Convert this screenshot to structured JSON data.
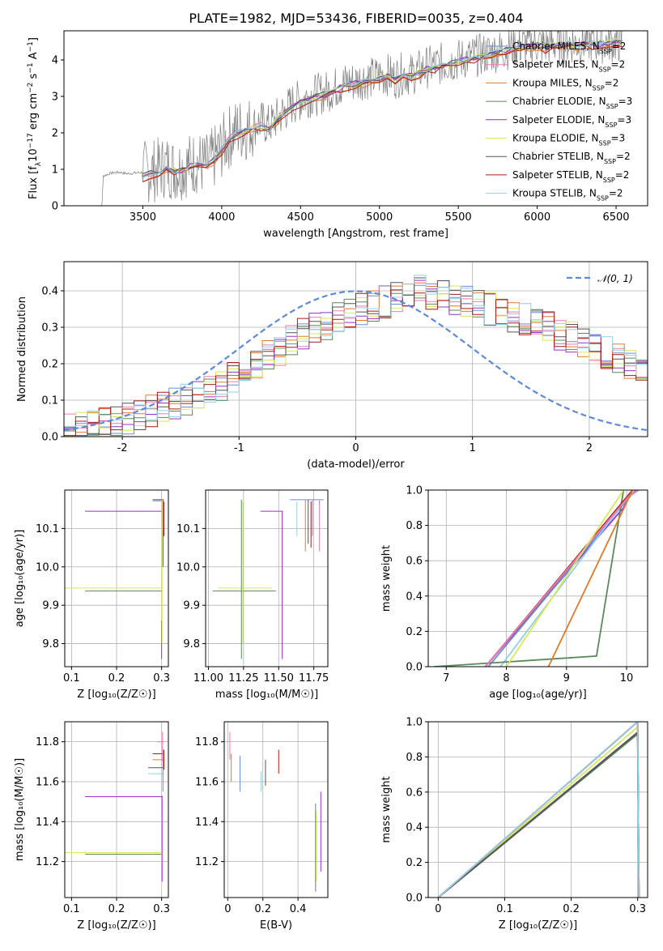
{
  "chart_data": [
    {
      "id": "spectrum",
      "type": "line",
      "title": "PLATE=1982, MJD=53436, FIBERID=0035, z=0.404",
      "xlabel": "wavelength [Angstrom, rest frame]",
      "ylabel_parts": [
        "Flux [f",
        "λ",
        "10",
        "−17",
        " erg cm",
        "−2",
        " s",
        "−1",
        " A",
        "−1",
        "]"
      ],
      "xlim": [
        3000,
        6700
      ],
      "ylim": [
        0,
        4.8
      ],
      "xticks": [
        3500,
        4000,
        4500,
        5000,
        5500,
        6000,
        6500
      ],
      "yticks": [
        0,
        1,
        2,
        3,
        4
      ],
      "data_color": "#808080",
      "data_points": [
        [
          3240,
          0.0
        ],
        [
          3250,
          0.82
        ],
        [
          3300,
          0.9
        ],
        [
          3350,
          0.92
        ],
        [
          3400,
          0.88
        ],
        [
          3450,
          0.9
        ],
        [
          3500,
          0.92
        ],
        [
          3550,
          0.95
        ],
        [
          3600,
          1.0
        ],
        [
          3650,
          1.1
        ],
        [
          3700,
          1.0
        ],
        [
          3750,
          1.05
        ],
        [
          3800,
          1.15
        ],
        [
          3850,
          1.2
        ],
        [
          3900,
          1.1
        ],
        [
          3950,
          1.3
        ],
        [
          4000,
          1.6
        ],
        [
          4050,
          1.9
        ],
        [
          4100,
          2.1
        ],
        [
          4150,
          2.1
        ],
        [
          4200,
          2.2
        ],
        [
          4250,
          2.3
        ],
        [
          4300,
          2.2
        ],
        [
          4350,
          2.4
        ],
        [
          4400,
          2.6
        ],
        [
          4450,
          2.8
        ],
        [
          4500,
          2.9
        ],
        [
          4550,
          3.0
        ],
        [
          4600,
          3.05
        ],
        [
          4650,
          3.1
        ],
        [
          4700,
          3.2
        ],
        [
          4750,
          3.3
        ],
        [
          4800,
          3.4
        ],
        [
          4850,
          3.4
        ],
        [
          4900,
          3.5
        ],
        [
          4950,
          3.5
        ],
        [
          5000,
          3.55
        ],
        [
          5050,
          3.6
        ],
        [
          5100,
          3.5
        ],
        [
          5150,
          3.65
        ],
        [
          5200,
          3.6
        ],
        [
          5250,
          3.7
        ],
        [
          5300,
          3.8
        ],
        [
          5350,
          3.85
        ],
        [
          5400,
          3.9
        ],
        [
          5450,
          3.95
        ],
        [
          5500,
          4.0
        ],
        [
          5550,
          4.05
        ],
        [
          5600,
          4.1
        ],
        [
          5650,
          4.15
        ],
        [
          5700,
          4.2
        ],
        [
          5750,
          4.25
        ],
        [
          5800,
          4.3
        ],
        [
          5850,
          4.35
        ],
        [
          5900,
          4.4
        ],
        [
          5950,
          4.42
        ],
        [
          6000,
          4.45
        ],
        [
          6050,
          4.4
        ],
        [
          6100,
          4.45
        ],
        [
          6150,
          4.45
        ],
        [
          6200,
          4.5
        ],
        [
          6250,
          4.45
        ],
        [
          6300,
          4.5
        ],
        [
          6350,
          4.5
        ],
        [
          6400,
          4.48
        ],
        [
          6450,
          4.5
        ],
        [
          6500,
          4.5
        ],
        [
          6540,
          4.5
        ]
      ],
      "model_points": [
        [
          3500,
          0.82
        ],
        [
          3550,
          0.88
        ],
        [
          3600,
          0.95
        ],
        [
          3650,
          1.05
        ],
        [
          3700,
          0.95
        ],
        [
          3750,
          1.0
        ],
        [
          3800,
          1.1
        ],
        [
          3850,
          1.15
        ],
        [
          3900,
          1.05
        ],
        [
          3950,
          1.25
        ],
        [
          4000,
          1.55
        ],
        [
          4050,
          1.85
        ],
        [
          4100,
          2.0
        ],
        [
          4150,
          2.05
        ],
        [
          4200,
          2.15
        ],
        [
          4250,
          2.2
        ],
        [
          4300,
          2.1
        ],
        [
          4350,
          2.35
        ],
        [
          4400,
          2.55
        ],
        [
          4450,
          2.75
        ],
        [
          4500,
          2.85
        ],
        [
          4550,
          2.95
        ],
        [
          4600,
          3.0
        ],
        [
          4650,
          3.05
        ],
        [
          4700,
          3.15
        ],
        [
          4750,
          3.25
        ],
        [
          4800,
          3.3
        ],
        [
          4850,
          3.35
        ],
        [
          4900,
          3.4
        ],
        [
          4950,
          3.45
        ],
        [
          5000,
          3.5
        ],
        [
          5050,
          3.55
        ],
        [
          5100,
          3.45
        ],
        [
          5150,
          3.6
        ],
        [
          5200,
          3.55
        ],
        [
          5250,
          3.65
        ],
        [
          5300,
          3.75
        ],
        [
          5350,
          3.8
        ],
        [
          5400,
          3.85
        ],
        [
          5450,
          3.9
        ],
        [
          5500,
          3.95
        ],
        [
          5550,
          4.0
        ],
        [
          5600,
          4.05
        ],
        [
          5650,
          4.1
        ],
        [
          5700,
          4.15
        ],
        [
          5750,
          4.2
        ],
        [
          5800,
          4.25
        ],
        [
          5850,
          4.3
        ],
        [
          5900,
          4.35
        ],
        [
          5950,
          4.38
        ],
        [
          6000,
          4.4
        ],
        [
          6050,
          4.35
        ],
        [
          6100,
          4.4
        ],
        [
          6150,
          4.42
        ],
        [
          6200,
          4.45
        ],
        [
          6250,
          4.4
        ],
        [
          6300,
          4.45
        ],
        [
          6350,
          4.45
        ],
        [
          6400,
          4.45
        ],
        [
          6450,
          4.45
        ],
        [
          6500,
          4.5
        ],
        [
          6540,
          4.5
        ]
      ],
      "legend_position": "upper-right",
      "series": [
        {
          "name": "Chabrier MILES",
          "nssp": "2",
          "color": "#6a8fd8"
        },
        {
          "name": "Salpeter MILES",
          "nssp": "2",
          "color": "#f07ab4"
        },
        {
          "name": "Kroupa MILES",
          "nssp": "2",
          "color": "#e07a2a"
        },
        {
          "name": "Chabrier ELODIE",
          "nssp": "3",
          "color": "#5a8a5a"
        },
        {
          "name": "Salpeter ELODIE",
          "nssp": "3",
          "color": "#9b30c8"
        },
        {
          "name": "Kroupa ELODIE",
          "nssp": "3",
          "color": "#d8e858"
        },
        {
          "name": "Chabrier STELIB",
          "nssp": "2",
          "color": "#555555"
        },
        {
          "name": "Salpeter STELIB",
          "nssp": "2",
          "color": "#b01818"
        },
        {
          "name": "Kroupa STELIB",
          "nssp": "2",
          "color": "#8fd0e8"
        }
      ]
    },
    {
      "id": "residuals",
      "type": "histogram",
      "xlabel": "(data-model)/error",
      "ylabel": "Normed distribution",
      "xlim": [
        -2.5,
        2.5
      ],
      "ylim": [
        0,
        0.48
      ],
      "xticks": [
        -2,
        -1,
        0,
        1,
        2
      ],
      "yticks": [
        0.0,
        0.1,
        0.2,
        0.3,
        0.4
      ],
      "legend_position": "upper-right",
      "normal_label": "𝒩(0, 1)",
      "normal_color": "#5b8bd8",
      "bin_width": 0.1,
      "bin_start": -2.5,
      "base_values": [
        0.02,
        0.025,
        0.03,
        0.035,
        0.04,
        0.05,
        0.06,
        0.07,
        0.08,
        0.09,
        0.1,
        0.11,
        0.13,
        0.14,
        0.16,
        0.18,
        0.2,
        0.22,
        0.24,
        0.26,
        0.28,
        0.3,
        0.31,
        0.33,
        0.34,
        0.35,
        0.36,
        0.37,
        0.38,
        0.39,
        0.4,
        0.39,
        0.39,
        0.38,
        0.37,
        0.36,
        0.35,
        0.34,
        0.33,
        0.32,
        0.31,
        0.3,
        0.28,
        0.27,
        0.26,
        0.24,
        0.23,
        0.21,
        0.2,
        0.18
      ]
    },
    {
      "id": "age-vs-Z",
      "type": "errorbar",
      "xlabel": "Z [log₁₀(Z/Z☉)]",
      "ylabel": "age  [log₁₀(age/yr)]",
      "xlim": [
        0.085,
        0.315
      ],
      "ylim": [
        9.74,
        10.2
      ],
      "xticks": [
        0.1,
        0.2,
        0.3
      ],
      "ytick_labels": [
        "9.8",
        "9.9",
        "10.0",
        "10.1"
      ],
      "yticks": [
        9.8,
        9.9,
        10.0,
        10.1
      ]
    },
    {
      "id": "age-vs-mass",
      "type": "errorbar",
      "xlabel": "mass [log₁₀(M/M☉)]",
      "xlim": [
        10.98,
        11.85
      ],
      "ylim": [
        9.74,
        10.2
      ],
      "xticks": [
        11.0,
        11.25,
        11.5,
        11.75
      ],
      "xtick_labels": [
        "11.00",
        "11.25",
        "11.50",
        "11.75"
      ],
      "ytick_labels": [
        "9.8",
        "9.9",
        "10.0",
        "10.1"
      ],
      "yticks": [
        9.8,
        9.9,
        10.0,
        10.1
      ]
    },
    {
      "id": "cumulative-age",
      "type": "line",
      "xlabel": "age  [log₁₀(age/yr)]",
      "ylabel": "mass weight",
      "xlim": [
        6.7,
        10.35
      ],
      "ylim": [
        0,
        1
      ],
      "xticks": [
        7,
        8,
        9,
        10
      ],
      "yticks": [
        0.0,
        0.2,
        0.4,
        0.6,
        0.8,
        1.0
      ]
    },
    {
      "id": "mass-vs-Z",
      "type": "errorbar",
      "xlabel": "Z [log₁₀(Z/Z☉)]",
      "ylabel": "mass [log₁₀(M/M☉)]",
      "xlim": [
        0.085,
        0.315
      ],
      "ylim": [
        11.02,
        11.9
      ],
      "xticks": [
        0.1,
        0.2,
        0.3
      ],
      "yticks": [
        11.2,
        11.4,
        11.6,
        11.8
      ]
    },
    {
      "id": "mass-vs-EBV",
      "type": "errorbar",
      "xlabel": "E(B-V)",
      "xlim": [
        -0.02,
        0.57
      ],
      "ylim": [
        11.02,
        11.9
      ],
      "xticks": [
        0.0,
        0.2,
        0.4
      ],
      "yticks": [
        11.2,
        11.4,
        11.6,
        11.8
      ]
    },
    {
      "id": "cumulative-Z",
      "type": "line",
      "xlabel": "Z [log₁₀(Z/Z☉)]",
      "ylabel": "mass weight",
      "xlim": [
        -0.015,
        0.315
      ],
      "ylim": [
        0,
        1
      ],
      "xticks": [
        0.0,
        0.1,
        0.2,
        0.3
      ],
      "yticks": [
        0.0,
        0.2,
        0.4,
        0.6,
        0.8,
        1.0
      ]
    }
  ]
}
